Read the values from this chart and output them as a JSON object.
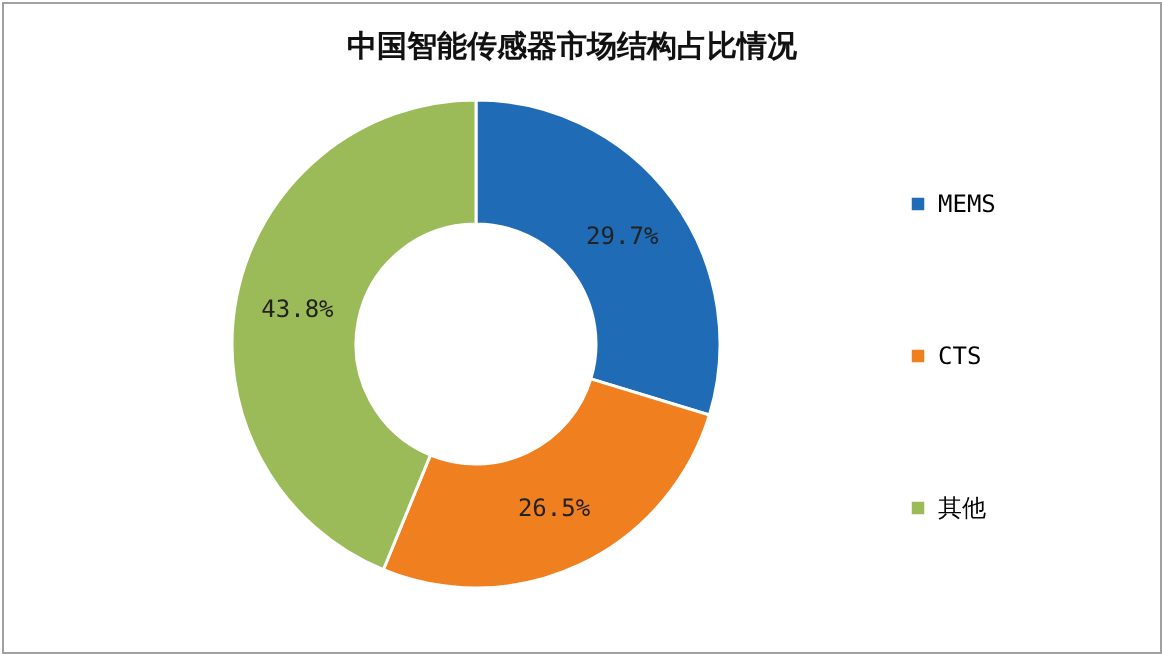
{
  "chart_data": {
    "type": "donut",
    "title": "中国智能传感器市场结构占比情况",
    "categories": [
      "MEMS",
      "CTS",
      "其他"
    ],
    "values": [
      29.7,
      26.5,
      43.8
    ],
    "colors": [
      "#1f6bb5",
      "#f07f1f",
      "#9bbb59"
    ],
    "value_labels": [
      "29.7%",
      "26.5%",
      "43.8%"
    ],
    "legend": "right"
  }
}
